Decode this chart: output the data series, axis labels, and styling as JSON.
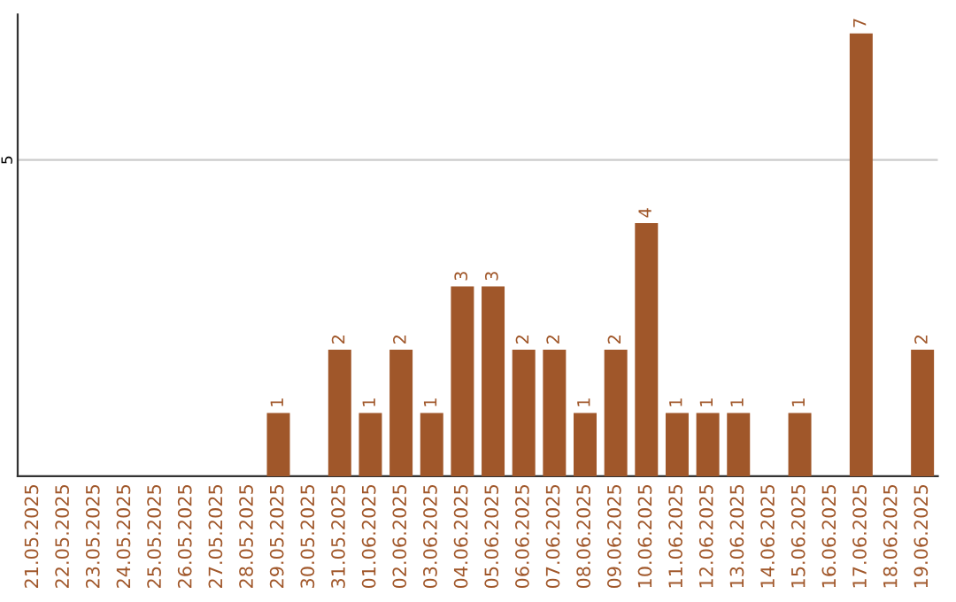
{
  "chart_data": {
    "type": "bar",
    "categories": [
      "21.05.2025",
      "22.05.2025",
      "23.05.2025",
      "24.05.2025",
      "25.05.2025",
      "26.05.2025",
      "27.05.2025",
      "28.05.2025",
      "29.05.2025",
      "30.05.2025",
      "31.05.2025",
      "01.06.2025",
      "02.06.2025",
      "03.06.2025",
      "04.06.2025",
      "05.06.2025",
      "06.06.2025",
      "07.06.2025",
      "08.06.2025",
      "09.06.2025",
      "10.06.2025",
      "11.06.2025",
      "12.06.2025",
      "13.06.2025",
      "14.06.2025",
      "15.06.2025",
      "16.06.2025",
      "17.06.2025",
      "18.06.2025",
      "19.06.2025"
    ],
    "values": [
      0,
      0,
      0,
      0,
      0,
      0,
      0,
      0,
      1,
      0,
      2,
      1,
      2,
      1,
      3,
      3,
      2,
      2,
      1,
      2,
      4,
      1,
      1,
      1,
      0,
      1,
      0,
      7,
      0,
      2
    ],
    "value_labels": [
      null,
      null,
      null,
      null,
      null,
      null,
      null,
      null,
      "1",
      null,
      "2",
      "1",
      "2",
      "1",
      "3",
      "3",
      "2",
      "2",
      "1",
      "2",
      "4",
      "1",
      "1",
      "1",
      null,
      "1",
      null,
      "7",
      null,
      "2"
    ],
    "color": "#a0572a",
    "ylim": [
      0,
      7.3
    ],
    "yticks": [
      5
    ],
    "grid": "y"
  }
}
